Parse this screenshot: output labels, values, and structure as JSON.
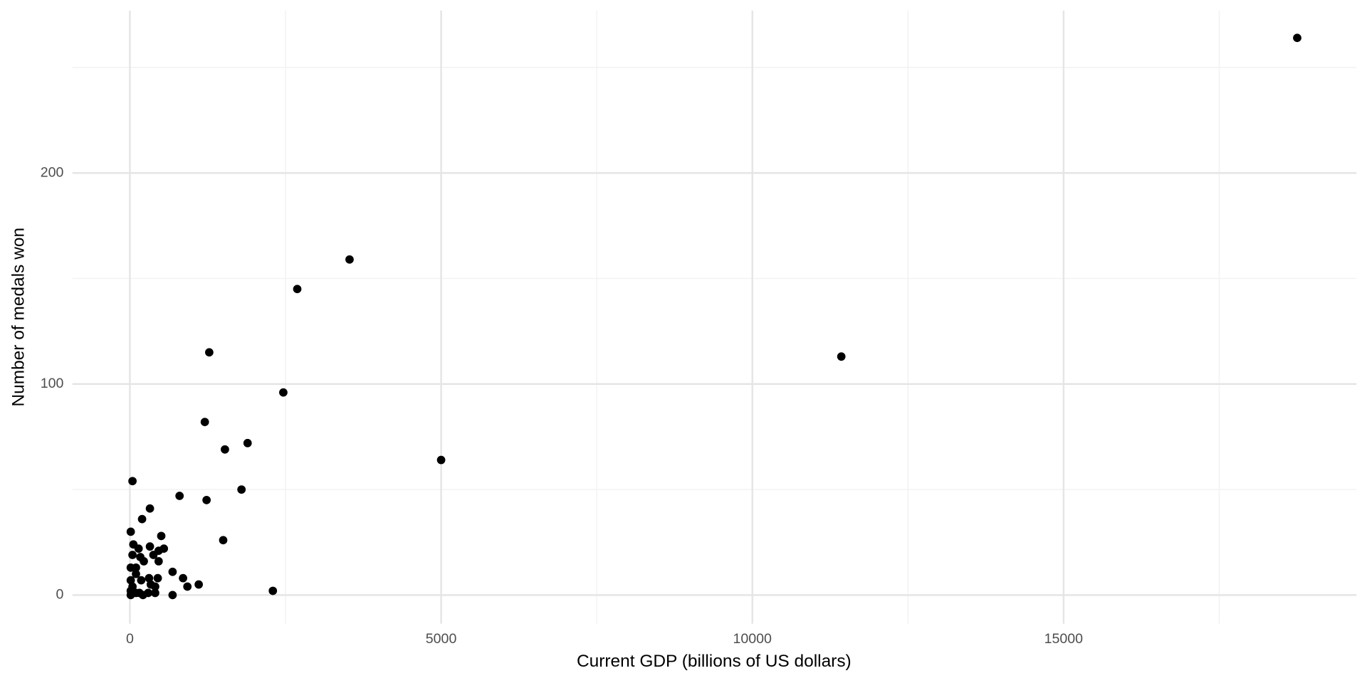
{
  "chart_data": {
    "type": "scatter",
    "x_label": "Current GDP (billions of US dollars)",
    "y_label": "Number of medals won",
    "x": [
      18753,
      3529,
      2689,
      1275,
      11429,
      2465,
      1204,
      1891,
      1527,
      5000,
      42,
      1793,
      798,
      1232,
      322,
      196,
      504,
      14,
      1499,
      56,
      322,
      140,
      546,
      462,
      378,
      42,
      168,
      462,
      224,
      14,
      98,
      686,
      98,
      854,
      448,
      308,
      14,
      182,
      1106,
      924,
      336,
      406,
      42,
      2297,
      294,
      406,
      154,
      14,
      686,
      210,
      14,
      98
    ],
    "values": [
      264,
      159,
      145,
      115,
      113,
      96,
      82,
      72,
      69,
      64,
      54,
      50,
      47,
      45,
      41,
      36,
      28,
      30,
      26,
      24,
      23,
      22,
      22,
      21,
      19,
      19,
      18,
      16,
      16,
      13,
      13,
      11,
      10,
      8,
      8,
      8,
      7,
      7,
      5,
      4,
      5,
      4,
      4,
      2,
      1,
      1,
      1,
      0,
      0,
      0,
      2,
      1
    ],
    "color": "#000000",
    "xlim": [
      -924,
      19706
    ],
    "ylim": [
      -13.6,
      277
    ],
    "xticks": [
      0,
      5000,
      10000,
      15000
    ],
    "yticks": [
      0,
      100,
      200
    ],
    "grid": true
  }
}
